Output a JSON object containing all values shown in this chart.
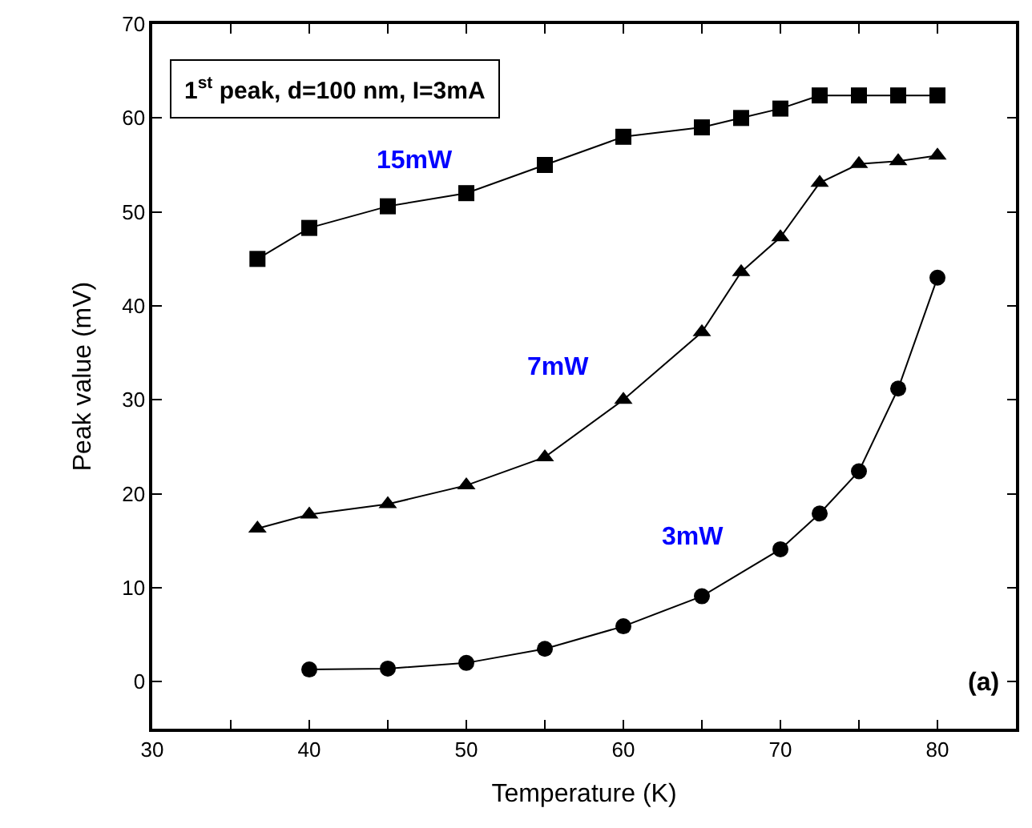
{
  "chart_data": {
    "type": "line",
    "xlabel": "Temperature (K)",
    "ylabel": "Peak value (mV)",
    "xlim": [
      30,
      85
    ],
    "ylim": [
      -5,
      70
    ],
    "xticks": [
      30,
      {
        "value": 35,
        "label": null
      },
      40,
      {
        "value": 45,
        "label": null
      },
      50,
      {
        "value": 55,
        "label": null
      },
      60,
      {
        "value": 65,
        "label": null
      },
      70,
      {
        "value": 75,
        "label": null
      },
      80
    ],
    "yticks": [
      0,
      10,
      20,
      30,
      40,
      50,
      60,
      70
    ],
    "line_style": "solid",
    "series": [
      {
        "name": "15mW",
        "color": "#000000",
        "marker": "square",
        "x": [
          36.7,
          40,
          45,
          50,
          55,
          60,
          65,
          67.5,
          70,
          72.5,
          75,
          77.5,
          80
        ],
        "values": [
          45,
          48.3,
          50.6,
          52,
          55,
          58,
          59,
          60,
          61,
          62.4,
          62.4,
          62.4,
          62.4
        ]
      },
      {
        "name": "7mW",
        "color": "#000000",
        "marker": "triangle",
        "x": [
          36.7,
          40,
          45,
          50,
          55,
          60,
          65,
          67.5,
          70,
          72.5,
          75,
          77.5,
          80
        ],
        "values": [
          16.3,
          17.8,
          18.9,
          20.9,
          23.9,
          30,
          37.2,
          43.6,
          47.3,
          53.1,
          55.1,
          55.4,
          56
        ]
      },
      {
        "name": "3mW",
        "color": "#000000",
        "marker": "circle",
        "x": [
          40,
          45,
          50,
          55,
          60,
          65,
          70,
          72.5,
          75,
          77.5,
          80
        ],
        "values": [
          1.3,
          1.4,
          2.0,
          3.5,
          5.9,
          9.1,
          14.1,
          17.9,
          22.4,
          31.2,
          43
        ]
      }
    ],
    "annotations": [
      "1$^{st}$ peak, d=100 nm, I=3mA",
      "(a)"
    ]
  }
}
